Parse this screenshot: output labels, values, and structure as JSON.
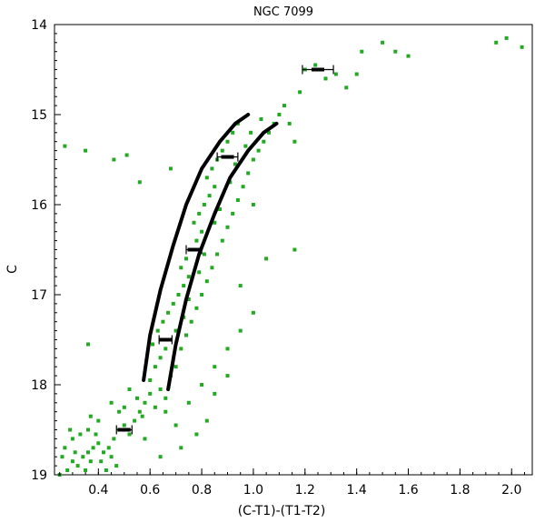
{
  "chart_data": {
    "type": "scatter",
    "title": "NGC 7099",
    "xlabel": "(C-T1)-(T1-T2)",
    "ylabel": "C",
    "xlim": [
      0.23,
      2.08
    ],
    "ylim": [
      14.0,
      19.0
    ],
    "y_inverted": true,
    "x_ticks": [
      "0.4",
      "0.6",
      "0.8",
      "1.0",
      "1.2",
      "1.4",
      "1.6",
      "1.8",
      "2.0"
    ],
    "y_ticks": [
      "14",
      "15",
      "16",
      "17",
      "18",
      "19"
    ],
    "grid": false,
    "legend": "none",
    "colors": {
      "stars": "#22aa22",
      "field": "#5fa07f",
      "curves": "#000000",
      "errorbars": "#000000"
    },
    "series": [
      {
        "kind": "scatter",
        "description_points": "cluster giant branch stars",
        "points": [
          [
            0.28,
            18.95
          ],
          [
            0.3,
            18.85
          ],
          [
            0.32,
            18.9
          ],
          [
            0.34,
            18.8
          ],
          [
            0.36,
            18.75
          ],
          [
            0.38,
            18.7
          ],
          [
            0.4,
            18.65
          ],
          [
            0.42,
            18.75
          ],
          [
            0.3,
            18.6
          ],
          [
            0.33,
            18.55
          ],
          [
            0.36,
            18.5
          ],
          [
            0.39,
            18.55
          ],
          [
            0.41,
            18.85
          ],
          [
            0.44,
            18.7
          ],
          [
            0.46,
            18.6
          ],
          [
            0.48,
            18.5
          ],
          [
            0.5,
            18.45
          ],
          [
            0.52,
            18.55
          ],
          [
            0.27,
            18.7
          ],
          [
            0.29,
            18.5
          ],
          [
            0.31,
            18.75
          ],
          [
            0.35,
            18.95
          ],
          [
            0.37,
            18.85
          ],
          [
            0.43,
            18.95
          ],
          [
            0.45,
            18.8
          ],
          [
            0.47,
            18.9
          ],
          [
            0.26,
            18.8
          ],
          [
            0.25,
            19.0
          ],
          [
            0.4,
            18.4
          ],
          [
            0.37,
            18.35
          ],
          [
            0.54,
            18.4
          ],
          [
            0.56,
            18.3
          ],
          [
            0.58,
            18.2
          ],
          [
            0.6,
            18.1
          ],
          [
            0.62,
            18.25
          ],
          [
            0.55,
            18.15
          ],
          [
            0.57,
            18.35
          ],
          [
            0.64,
            18.05
          ],
          [
            0.66,
            18.15
          ],
          [
            0.6,
            17.95
          ],
          [
            0.62,
            17.8
          ],
          [
            0.64,
            17.7
          ],
          [
            0.66,
            17.6
          ],
          [
            0.68,
            17.5
          ],
          [
            0.7,
            17.4
          ],
          [
            0.61,
            17.55
          ],
          [
            0.63,
            17.4
          ],
          [
            0.65,
            17.3
          ],
          [
            0.67,
            17.2
          ],
          [
            0.69,
            17.1
          ],
          [
            0.71,
            17.0
          ],
          [
            0.73,
            16.9
          ],
          [
            0.75,
            16.8
          ],
          [
            0.72,
            16.7
          ],
          [
            0.74,
            16.6
          ],
          [
            0.76,
            16.5
          ],
          [
            0.78,
            16.4
          ],
          [
            0.8,
            16.3
          ],
          [
            0.77,
            16.2
          ],
          [
            0.79,
            16.1
          ],
          [
            0.81,
            16.0
          ],
          [
            0.83,
            15.9
          ],
          [
            0.85,
            15.8
          ],
          [
            0.82,
            15.7
          ],
          [
            0.84,
            15.6
          ],
          [
            0.86,
            15.5
          ],
          [
            0.88,
            15.4
          ],
          [
            0.9,
            15.3
          ],
          [
            0.92,
            15.2
          ],
          [
            0.94,
            15.1
          ],
          [
            0.7,
            17.8
          ],
          [
            0.72,
            17.6
          ],
          [
            0.74,
            17.45
          ],
          [
            0.76,
            17.3
          ],
          [
            0.78,
            17.15
          ],
          [
            0.8,
            17.0
          ],
          [
            0.82,
            16.85
          ],
          [
            0.84,
            16.7
          ],
          [
            0.86,
            16.55
          ],
          [
            0.88,
            16.4
          ],
          [
            0.9,
            16.25
          ],
          [
            0.92,
            16.1
          ],
          [
            0.94,
            15.95
          ],
          [
            0.96,
            15.8
          ],
          [
            0.98,
            15.65
          ],
          [
            1.0,
            15.5
          ],
          [
            1.02,
            15.4
          ],
          [
            1.04,
            15.3
          ],
          [
            1.06,
            15.2
          ],
          [
            1.08,
            15.1
          ],
          [
            0.68,
            17.9
          ],
          [
            0.73,
            17.25
          ],
          [
            0.79,
            16.75
          ],
          [
            0.85,
            16.2
          ],
          [
            0.91,
            15.75
          ],
          [
            0.97,
            15.35
          ],
          [
            1.03,
            15.05
          ],
          [
            0.75,
            17.05
          ],
          [
            0.81,
            16.55
          ],
          [
            0.87,
            16.05
          ],
          [
            0.93,
            15.55
          ],
          [
            0.99,
            15.2
          ],
          [
            0.66,
            18.3
          ],
          [
            0.7,
            18.45
          ],
          [
            0.75,
            18.2
          ],
          [
            0.8,
            18.0
          ],
          [
            0.85,
            17.8
          ],
          [
            0.9,
            17.6
          ],
          [
            0.95,
            17.4
          ],
          [
            0.58,
            18.6
          ],
          [
            0.5,
            18.25
          ],
          [
            0.52,
            18.05
          ],
          [
            0.48,
            18.3
          ],
          [
            0.45,
            18.2
          ],
          [
            0.36,
            17.55
          ],
          [
            0.46,
            15.5
          ],
          [
            0.27,
            15.35
          ],
          [
            0.35,
            15.4
          ],
          [
            0.51,
            15.45
          ],
          [
            0.56,
            15.75
          ],
          [
            0.68,
            15.6
          ],
          [
            1.1,
            15.0
          ],
          [
            1.12,
            14.9
          ],
          [
            1.14,
            15.1
          ],
          [
            1.16,
            15.3
          ],
          [
            1.18,
            14.75
          ],
          [
            1.2,
            14.5
          ],
          [
            1.24,
            14.45
          ],
          [
            1.28,
            14.6
          ],
          [
            1.32,
            14.55
          ],
          [
            1.36,
            14.7
          ],
          [
            1.4,
            14.55
          ],
          [
            1.42,
            14.3
          ],
          [
            1.5,
            14.2
          ],
          [
            1.55,
            14.3
          ],
          [
            1.6,
            14.35
          ],
          [
            1.94,
            14.2
          ],
          [
            1.98,
            14.15
          ],
          [
            2.04,
            14.25
          ],
          [
            1.16,
            16.5
          ],
          [
            1.0,
            16.0
          ],
          [
            1.05,
            16.6
          ],
          [
            0.95,
            16.9
          ],
          [
            1.0,
            17.2
          ],
          [
            0.9,
            17.9
          ],
          [
            0.85,
            18.1
          ],
          [
            0.82,
            18.4
          ],
          [
            0.78,
            18.55
          ],
          [
            0.72,
            18.7
          ],
          [
            0.64,
            18.8
          ]
        ]
      }
    ],
    "fiducial_curves": [
      {
        "points": [
          [
            0.575,
            17.95
          ],
          [
            0.6,
            17.45
          ],
          [
            0.64,
            16.95
          ],
          [
            0.69,
            16.45
          ],
          [
            0.74,
            16.0
          ],
          [
            0.8,
            15.6
          ],
          [
            0.87,
            15.3
          ],
          [
            0.93,
            15.1
          ],
          [
            0.98,
            15.0
          ]
        ]
      },
      {
        "points": [
          [
            0.67,
            18.05
          ],
          [
            0.7,
            17.55
          ],
          [
            0.74,
            17.05
          ],
          [
            0.79,
            16.55
          ],
          [
            0.85,
            16.1
          ],
          [
            0.91,
            15.7
          ],
          [
            0.98,
            15.4
          ],
          [
            1.04,
            15.2
          ],
          [
            1.09,
            15.1
          ]
        ]
      }
    ],
    "error_bars": [
      {
        "x": 1.25,
        "y": 14.5,
        "xerr": 0.06
      },
      {
        "x": 0.9,
        "y": 15.47,
        "xerr": 0.04
      },
      {
        "x": 0.77,
        "y": 16.5,
        "xerr": 0.03
      },
      {
        "x": 0.66,
        "y": 17.5,
        "xerr": 0.025
      },
      {
        "x": 0.5,
        "y": 18.5,
        "xerr": 0.03
      }
    ]
  }
}
